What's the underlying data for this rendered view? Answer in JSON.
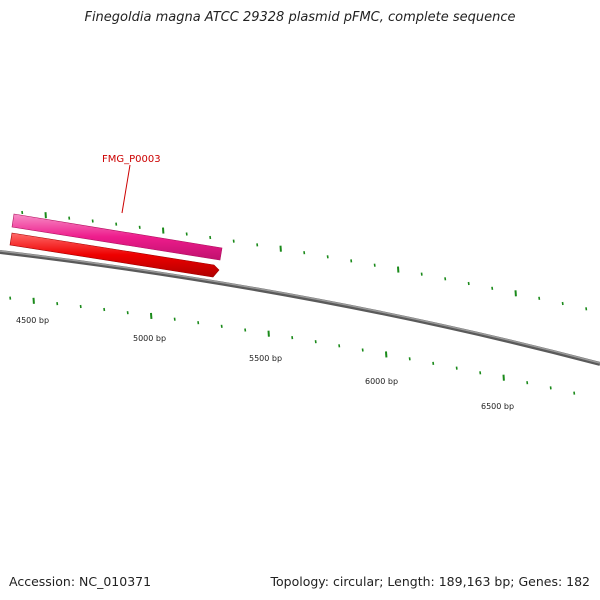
{
  "title": "Finegoldia magna ATCC 29328 plasmid pFMC, complete sequence",
  "footer": {
    "accession": "Accession: NC_010371",
    "summary": "Topology: circular; Length: 189,163 bp; Genes: 182"
  },
  "colors": {
    "backbone": "#7a7a7a",
    "gene_plus": "#ee1c8c",
    "gene_minus": "#ee0000",
    "gc_ticks": "#1a8a1a",
    "label": "#cc0000"
  },
  "genes": [
    {
      "name": "FMG_P0003",
      "strand": "+",
      "labeled": true
    },
    {
      "name": "",
      "strand": "-",
      "labeled": false
    }
  ],
  "tick_labels": [
    "4500 bp",
    "5000 bp",
    "5500 bp",
    "6000 bp",
    "6500 bp"
  ]
}
